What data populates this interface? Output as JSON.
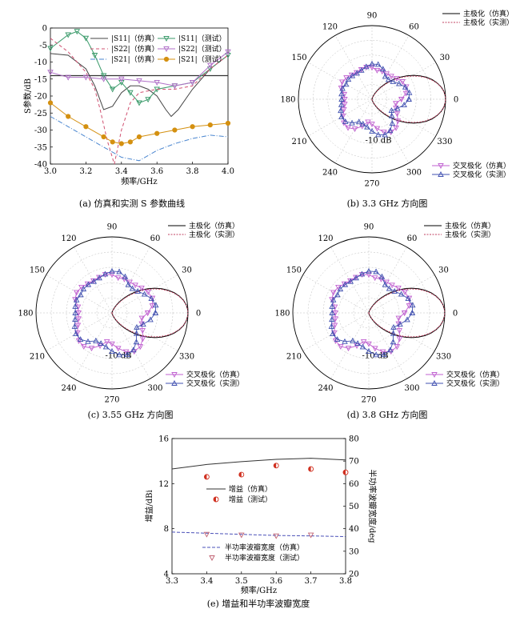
{
  "chart_data": [
    {
      "type": "line",
      "caption": "(a) 仿真和实测 S 参数曲线",
      "xlabel": "频率/GHz",
      "ylabel": "S参数/dB",
      "xlim": [
        3.0,
        4.0
      ],
      "ylim": [
        -40,
        0
      ],
      "xticks": [
        "3.0",
        "3.2",
        "3.4",
        "3.6",
        "3.8",
        "4.0"
      ],
      "yticks": [
        "0",
        "-5",
        "-10",
        "-15",
        "-20",
        "-25",
        "-30",
        "-35",
        "-40"
      ],
      "legend": [
        {
          "label": "|S11|（仿真）",
          "color": "#444444",
          "dash": "none",
          "marker": "none"
        },
        {
          "label": "|S11|（测试）",
          "color": "#3a9a6a",
          "dash": "none",
          "marker": "tri-down"
        },
        {
          "label": "|S22|（仿真）",
          "color": "#d05070",
          "dash": "4,3",
          "marker": "none"
        },
        {
          "label": "|S22|（测试）",
          "color": "#b070c8",
          "dash": "none",
          "marker": "tri-down"
        },
        {
          "label": "|S21|（仿真）",
          "color": "#4a86d0",
          "dash": "6,2,1,2",
          "marker": "none"
        },
        {
          "label": "|S21|（测试）",
          "color": "#d49010",
          "dash": "none",
          "marker": "circle"
        }
      ],
      "series": [
        {
          "x": [
            3.0,
            3.1,
            3.2,
            3.25,
            3.3,
            3.35,
            3.4,
            3.45,
            3.5,
            3.55,
            3.6,
            3.65,
            3.68,
            3.72,
            3.8,
            3.9,
            4.0
          ],
          "y": [
            -7.5,
            -8,
            -12,
            -17,
            -24,
            -23,
            -19,
            -17,
            -17,
            -18,
            -20,
            -24,
            -26,
            -24,
            -18,
            -12,
            -8
          ]
        },
        {
          "x": [
            3.0,
            3.1,
            3.15,
            3.2,
            3.25,
            3.3,
            3.35,
            3.4,
            3.45,
            3.5,
            3.55,
            3.6,
            3.7,
            3.8,
            3.9,
            4.0
          ],
          "y": [
            -6,
            -2,
            -1,
            -3,
            -8,
            -14,
            -18,
            -16,
            -19,
            -22,
            -21,
            -18,
            -17,
            -16,
            -12,
            -8
          ]
        },
        {
          "x": [
            3.0,
            3.05,
            3.1,
            3.15,
            3.2,
            3.25,
            3.28,
            3.32,
            3.36,
            3.4,
            3.45,
            3.5,
            3.6,
            3.7,
            3.8,
            3.9,
            4.0
          ],
          "y": [
            -3,
            -5,
            -7,
            -10,
            -13,
            -18,
            -24,
            -33,
            -40,
            -30,
            -22,
            -19,
            -18,
            -18,
            -17,
            -12,
            -8
          ]
        },
        {
          "x": [
            3.0,
            3.1,
            3.2,
            3.3,
            3.4,
            3.5,
            3.6,
            3.7,
            3.8,
            3.9,
            4.0
          ],
          "y": [
            -13,
            -14.5,
            -14.5,
            -15,
            -15,
            -15.5,
            -16,
            -17,
            -16,
            -11,
            -7
          ]
        },
        {
          "x": [
            3.0,
            3.1,
            3.2,
            3.3,
            3.4,
            3.5,
            3.6,
            3.7,
            3.8,
            3.9,
            4.0
          ],
          "y": [
            -26,
            -29,
            -32,
            -35,
            -38,
            -39,
            -36,
            -34,
            -32.5,
            -31.5,
            -32
          ]
        },
        {
          "x": [
            3.0,
            3.1,
            3.2,
            3.3,
            3.35,
            3.4,
            3.45,
            3.5,
            3.6,
            3.7,
            3.8,
            3.9,
            4.0
          ],
          "y": [
            -22,
            -26,
            -29,
            -32,
            -33.5,
            -34,
            -33.5,
            -32,
            -31,
            -30,
            -29,
            -28.5,
            -28
          ]
        }
      ]
    },
    {
      "type": "polar",
      "caption": "(b) 3.3 GHz 方向图",
      "angle_labels": [
        "0",
        "30",
        "60",
        "90",
        "120",
        "150",
        "180",
        "210",
        "240",
        "270",
        "300",
        "330"
      ],
      "radial_label": "-10 dB",
      "legend_top": [
        "主极化（仿真）",
        "主极化（实测）"
      ],
      "legend_bottom": [
        "交叉极化（仿真）",
        "交叉极化（实测）"
      ]
    },
    {
      "type": "polar",
      "caption": "(c) 3.55 GHz 方向图",
      "angle_labels": [
        "0",
        "30",
        "60",
        "90",
        "120",
        "150",
        "180",
        "210",
        "240",
        "270",
        "300",
        "330"
      ],
      "radial_label": "-10 dB",
      "legend_top": [
        "主极化（仿真）",
        "主极化（实测）"
      ],
      "legend_bottom": [
        "交叉极化（仿真）",
        "交叉极化（实测）"
      ]
    },
    {
      "type": "polar",
      "caption": "(d) 3.8 GHz 方向图",
      "angle_labels": [
        "0",
        "30",
        "60",
        "90",
        "120",
        "150",
        "180",
        "210",
        "240",
        "270",
        "300",
        "330"
      ],
      "radial_label": "-10 dB",
      "legend_top": [
        "主极化（仿真）",
        "主极化（实测）"
      ],
      "legend_bottom": [
        "交叉极化（仿真）",
        "交叉极化（实测）"
      ]
    },
    {
      "type": "line",
      "caption": "(e) 增益和半功率波瓣宽度",
      "xlabel": "频率/GHz",
      "ylabel": "增益/dBi",
      "y2label": "半功率波瓣宽度/deg",
      "xlim": [
        3.3,
        3.8
      ],
      "ylim": [
        4,
        16
      ],
      "y2lim": [
        20,
        80
      ],
      "xticks": [
        "3.3",
        "3.4",
        "3.5",
        "3.6",
        "3.7",
        "3.8"
      ],
      "yticks": [
        "4",
        "8",
        "12",
        "16"
      ],
      "y2ticks": [
        "20",
        "30",
        "40",
        "50",
        "60",
        "70",
        "80"
      ],
      "legend": [
        "增益（仿真）",
        "增益（测试）",
        "半功率波瓣宽度（仿真）",
        "半功率波瓣宽度（测试）"
      ],
      "series": [
        {
          "name": "增益（仿真）",
          "x": [
            3.3,
            3.4,
            3.5,
            3.6,
            3.7,
            3.8
          ],
          "y": [
            13.3,
            13.7,
            13.95,
            14.15,
            14.25,
            14.1
          ]
        },
        {
          "name": "增益（测试）",
          "x": [
            3.4,
            3.5,
            3.6,
            3.7,
            3.8
          ],
          "y": [
            12.6,
            12.8,
            13.6,
            13.3,
            13.0
          ]
        },
        {
          "name": "半功率波瓣宽度（仿真）",
          "x": [
            3.3,
            3.4,
            3.5,
            3.6,
            3.7,
            3.8
          ],
          "y": [
            38.5,
            38,
            37.5,
            37,
            36.8,
            36.5
          ]
        },
        {
          "name": "半功率波瓣宽度（测试）",
          "x": [
            3.4,
            3.5,
            3.6,
            3.7
          ],
          "y": [
            37.5,
            37.2,
            36.8,
            37.2
          ]
        }
      ]
    }
  ]
}
